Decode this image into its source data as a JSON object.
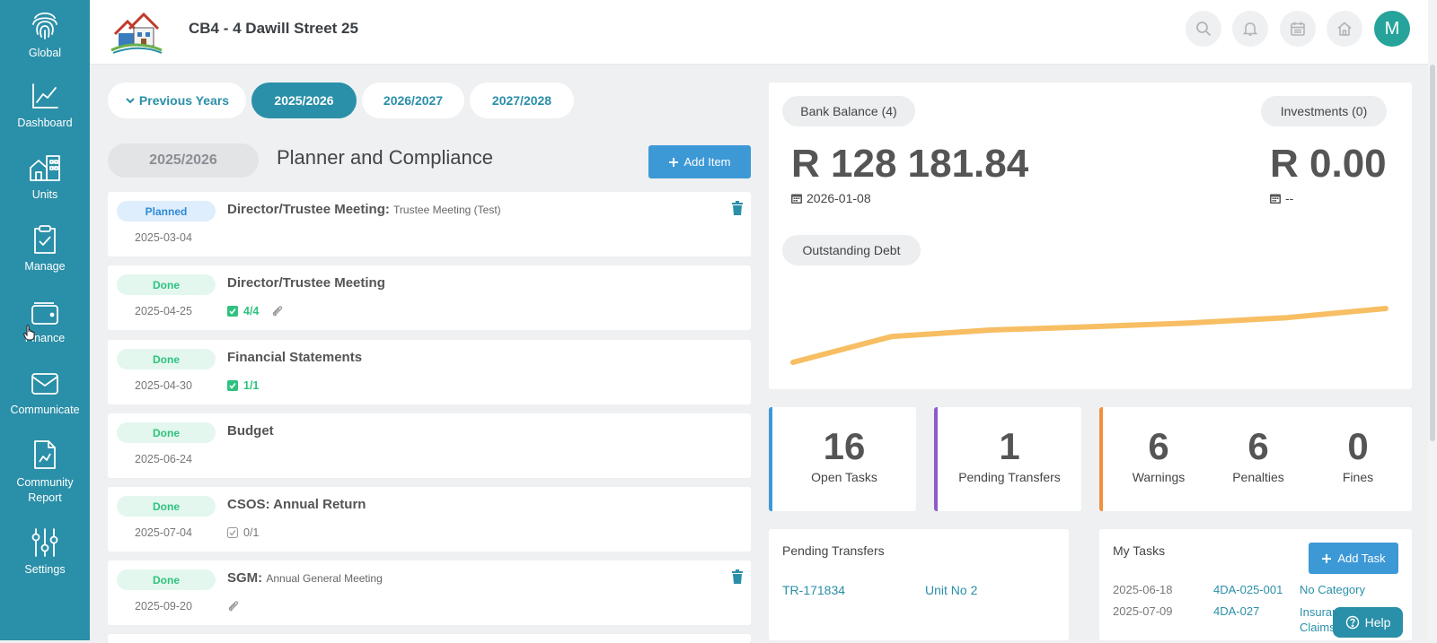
{
  "sidebar": {
    "items": [
      {
        "label": "Global",
        "icon": "fingerprint-icon"
      },
      {
        "label": "Dashboard",
        "icon": "line-chart-icon"
      },
      {
        "label": "Units",
        "icon": "building-icon"
      },
      {
        "label": "Manage",
        "icon": "clipboard-check-icon"
      },
      {
        "label": "Finance",
        "icon": "wallet-icon"
      },
      {
        "label": "Communicate",
        "icon": "envelope-icon"
      },
      {
        "label": "Community",
        "label2": "Report",
        "icon": "report-icon"
      },
      {
        "label": "Settings",
        "icon": "sliders-icon"
      }
    ]
  },
  "header": {
    "title": "CB4 - 4 Dawill Street 25",
    "avatar_letter": "M",
    "icons": [
      "search-icon",
      "bell-icon",
      "calendar-icon",
      "home-icon"
    ]
  },
  "years": {
    "previous": "Previous Years",
    "tabs": [
      "2025/2026",
      "2026/2027",
      "2027/2028"
    ],
    "active": "2025/2026"
  },
  "planner": {
    "year_pill": "2025/2026",
    "title": "Planner and Compliance",
    "add_item": "Add Item",
    "items": [
      {
        "status": "Planned",
        "title": "Director/Trustee Meeting:",
        "subtitle": "Trustee Meeting (Test)",
        "date": "2025-03-04",
        "checklist": "",
        "attachment": false,
        "deletable": true
      },
      {
        "status": "Done",
        "title": "Director/Trustee Meeting",
        "subtitle": "",
        "date": "2025-04-25",
        "checklist": "4/4",
        "attachment": true,
        "deletable": false
      },
      {
        "status": "Done",
        "title": "Financial Statements",
        "subtitle": "",
        "date": "2025-04-30",
        "checklist": "1/1",
        "attachment": false,
        "deletable": false
      },
      {
        "status": "Done",
        "title": "Budget",
        "subtitle": "",
        "date": "2025-06-24",
        "checklist": "",
        "attachment": false,
        "deletable": false
      },
      {
        "status": "Done",
        "title": "CSOS: Annual Return",
        "subtitle": "",
        "date": "2025-07-04",
        "checklist": "0/1",
        "attachment": false,
        "deletable": false
      },
      {
        "status": "Done",
        "title": "SGM:",
        "subtitle": "Annual General Meeting",
        "date": "2025-09-20",
        "checklist": "",
        "attachment": true,
        "deletable": true
      }
    ]
  },
  "bank": {
    "balance_label": "Bank Balance (4)",
    "balance_value": "R 128 181.84",
    "balance_date": "2026-01-08",
    "investments_label": "Investments (0)",
    "investments_value": "R 0.00",
    "investments_date": "--",
    "debt_label": "Outstanding Debt",
    "line_color": "#f7be63"
  },
  "chart_data": {
    "type": "line",
    "title": "",
    "xlabel": "",
    "ylabel": "",
    "series": [
      {
        "values": [
          0,
          0.48,
          0.6,
          0.66,
          0.73,
          0.83,
          1.0
        ]
      }
    ],
    "note_y_units": "relative (no axis printed)"
  },
  "stats": {
    "open_tasks": {
      "value": "16",
      "label": "Open Tasks",
      "color": "#3d99d6"
    },
    "pending_transfers": {
      "value": "1",
      "label": "Pending Transfers",
      "color": "#8e5bc9"
    },
    "warnings": {
      "value": "6",
      "label": "Warnings"
    },
    "penalties": {
      "value": "6",
      "label": "Penalties"
    },
    "fines": {
      "value": "0",
      "label": "Fines"
    },
    "compliance_color": "#f28f3b"
  },
  "pending": {
    "title": "Pending Transfers",
    "rows": [
      {
        "ref": "TR-171834",
        "unit": "Unit No 2"
      }
    ]
  },
  "tasks": {
    "title": "My Tasks",
    "add_task": "Add Task",
    "rows": [
      {
        "date": "2025-06-18",
        "ref": "4DA-025-001",
        "category": "No Category"
      },
      {
        "date": "2025-07-09",
        "ref": "4DA-027",
        "category": "Insurance Claims"
      }
    ]
  },
  "help": {
    "label": "Help"
  }
}
